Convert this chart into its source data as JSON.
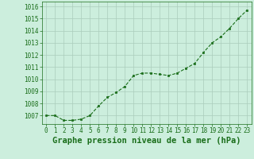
{
  "x": [
    0,
    1,
    2,
    3,
    4,
    5,
    6,
    7,
    8,
    9,
    10,
    11,
    12,
    13,
    14,
    15,
    16,
    17,
    18,
    19,
    20,
    21,
    22,
    23
  ],
  "y": [
    1007.0,
    1007.0,
    1006.6,
    1006.6,
    1006.7,
    1007.0,
    1007.8,
    1008.5,
    1008.9,
    1009.4,
    1010.3,
    1010.5,
    1010.5,
    1010.4,
    1010.3,
    1010.5,
    1010.9,
    1011.3,
    1012.2,
    1013.0,
    1013.5,
    1014.2,
    1015.0,
    1015.7
  ],
  "line_color": "#1a6e1a",
  "marker_color": "#1a6e1a",
  "background_color": "#cceedd",
  "grid_color": "#aaccbb",
  "xlabel": "Graphe pression niveau de la mer (hPa)",
  "xlabel_color": "#1a6e1a",
  "ylabel_ticklabels": [
    "1007",
    "1008",
    "1009",
    "1010",
    "1011",
    "1012",
    "1013",
    "1014",
    "1015",
    "1016"
  ],
  "ylim": [
    1006.3,
    1016.4
  ],
  "xlim": [
    -0.5,
    23.5
  ],
  "yticks": [
    1007,
    1008,
    1009,
    1010,
    1011,
    1012,
    1013,
    1014,
    1015,
    1016
  ],
  "xticks": [
    0,
    1,
    2,
    3,
    4,
    5,
    6,
    7,
    8,
    9,
    10,
    11,
    12,
    13,
    14,
    15,
    16,
    17,
    18,
    19,
    20,
    21,
    22,
    23
  ],
  "tick_color": "#1a6e1a",
  "tick_fontsize": 5.5,
  "xlabel_fontsize": 7.5
}
